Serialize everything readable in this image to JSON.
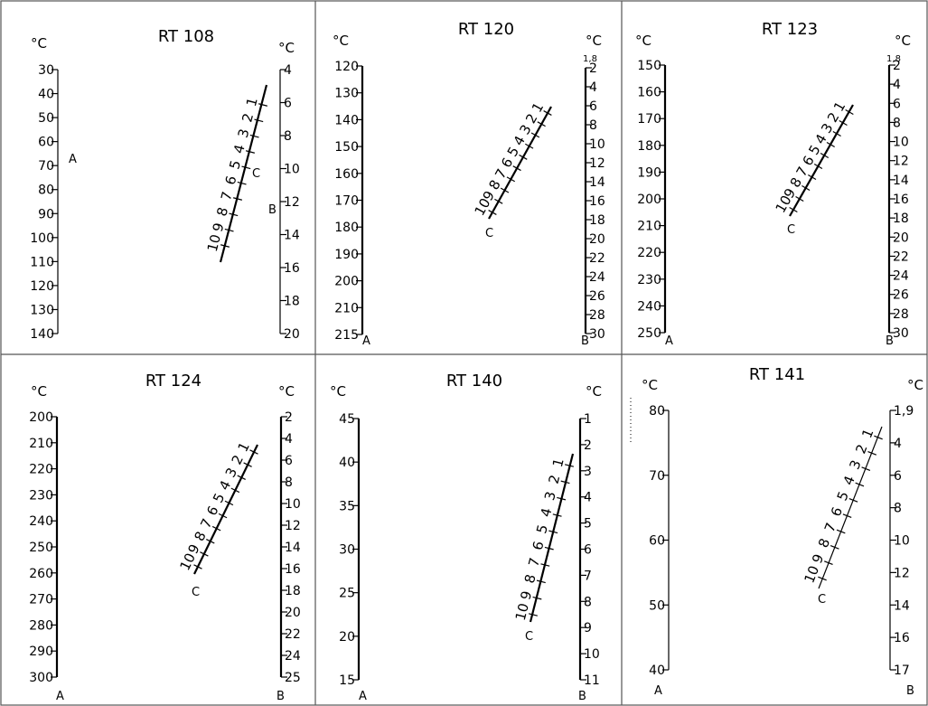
{
  "panels": [
    {
      "title": "RT  108",
      "unit_left": "°C",
      "unit_right": "°C",
      "left_scale": {
        "ticks": [
          "30",
          "40",
          "50",
          "60",
          "70",
          "80",
          "90",
          "100",
          "110",
          "120",
          "130",
          "140"
        ],
        "letter": "A"
      },
      "right_scale": {
        "ticks": [
          "4",
          "6",
          "8",
          "10",
          "12",
          "14",
          "16",
          "18",
          "20"
        ],
        "extra_top": "",
        "letter": "B"
      },
      "diagonal": {
        "labels": [
          "1",
          "2",
          "3",
          "4",
          "5",
          "6",
          "7",
          "8",
          "9",
          "10"
        ],
        "letter": "C"
      }
    },
    {
      "title": "RT  120",
      "unit_left": "°C",
      "unit_right": "°C",
      "left_scale": {
        "ticks": [
          "120",
          "130",
          "140",
          "150",
          "160",
          "170",
          "180",
          "190",
          "200",
          "210",
          "215"
        ],
        "letter": "A"
      },
      "right_scale": {
        "ticks": [
          "2",
          "4",
          "6",
          "8",
          "10",
          "12",
          "14",
          "16",
          "18",
          "20",
          "22",
          "24",
          "26",
          "28",
          "30"
        ],
        "extra_top": "1,8",
        "letter": "B"
      },
      "diagonal": {
        "labels": [
          "1",
          "2",
          "3",
          "4",
          "5",
          "6",
          "7",
          "8",
          "9",
          "10"
        ],
        "letter": "C"
      }
    },
    {
      "title": "RT  123",
      "unit_left": "°C",
      "unit_right": "°C",
      "left_scale": {
        "ticks": [
          "150",
          "160",
          "170",
          "180",
          "190",
          "200",
          "210",
          "220",
          "230",
          "240",
          "250"
        ],
        "letter": "A"
      },
      "right_scale": {
        "ticks": [
          "2",
          "4",
          "6",
          "8",
          "10",
          "12",
          "14",
          "16",
          "18",
          "20",
          "22",
          "24",
          "26",
          "28",
          "30"
        ],
        "extra_top": "1,8",
        "letter": "B"
      },
      "diagonal": {
        "labels": [
          "1",
          "2",
          "3",
          "4",
          "5",
          "6",
          "7",
          "8",
          "9",
          "10"
        ],
        "letter": "C"
      }
    },
    {
      "title": "RT  124",
      "unit_left": "°C",
      "unit_right": "°C",
      "left_scale": {
        "ticks": [
          "200",
          "210",
          "220",
          "230",
          "240",
          "250",
          "260",
          "270",
          "280",
          "290",
          "300"
        ],
        "letter": "A"
      },
      "right_scale": {
        "ticks": [
          "2",
          "4",
          "6",
          "8",
          "10",
          "12",
          "14",
          "16",
          "18",
          "20",
          "22",
          "24",
          "25"
        ],
        "extra_top": "",
        "letter": "B"
      },
      "diagonal": {
        "labels": [
          "1",
          "2",
          "3",
          "4",
          "5",
          "6",
          "7",
          "8",
          "9",
          "10"
        ],
        "letter": "C"
      }
    },
    {
      "title": "RT  140",
      "unit_left": "°C",
      "unit_right": "°C",
      "left_scale": {
        "ticks": [
          "45",
          "40",
          "35",
          "30",
          "25",
          "20",
          "15"
        ],
        "letter": "A"
      },
      "right_scale": {
        "ticks": [
          "1",
          "2",
          "3",
          "4",
          "5",
          "6",
          "7",
          "8",
          "9",
          "10",
          "11"
        ],
        "extra_top": "",
        "letter": "B"
      },
      "diagonal": {
        "labels": [
          "1",
          "2",
          "3",
          "4",
          "5",
          "6",
          "7",
          "8",
          "9",
          "10"
        ],
        "letter": "C"
      }
    },
    {
      "title": "RT  141",
      "unit_left": "°C",
      "unit_right": "°C",
      "left_scale": {
        "ticks": [
          "80",
          "70",
          "60",
          "50",
          "40"
        ],
        "letter": "A"
      },
      "right_scale": {
        "ticks": [
          "1,9",
          "4",
          "6",
          "8",
          "10",
          "12",
          "14",
          "16",
          "17"
        ],
        "extra_top": "",
        "letter": "B"
      },
      "diagonal": {
        "labels": [
          "1",
          "2",
          "3",
          "4",
          "5",
          "6",
          "7",
          "8",
          "9",
          "10"
        ],
        "letter": "C"
      }
    }
  ]
}
